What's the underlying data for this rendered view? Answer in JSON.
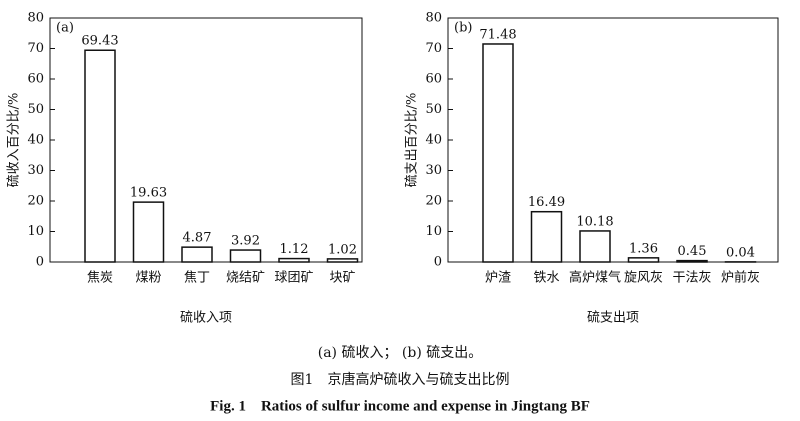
{
  "chart_data": [
    {
      "type": "bar",
      "title": "(a)",
      "ylabel": "硫收入百分比/%",
      "xlabel": "硫收入项",
      "categories": [
        "焦炭",
        "煤粉",
        "焦丁",
        "烧结矿",
        "球团矿",
        "块矿"
      ],
      "values": [
        69.43,
        19.63,
        4.87,
        3.92,
        1.12,
        1.02
      ],
      "color": "#ffffff",
      "ylim": [
        0,
        80
      ],
      "yticks": [
        0,
        10,
        20,
        30,
        40,
        50,
        60,
        70,
        80
      ],
      "grid": false
    },
    {
      "type": "bar",
      "title": "(b)",
      "ylabel": "硫支出百分比/%",
      "xlabel": "硫支出项",
      "categories": [
        "炉渣",
        "铁水",
        "高炉煤气",
        "旋风灰",
        "干法灰",
        "炉前灰"
      ],
      "values": [
        71.48,
        16.49,
        10.18,
        1.36,
        0.45,
        0.04
      ],
      "color": "#ffffff",
      "ylim": [
        0,
        80
      ],
      "yticks": [
        0,
        10,
        20,
        30,
        40,
        50,
        60,
        70,
        80
      ],
      "grid": false
    }
  ],
  "figure": {
    "subcaption": "(a) 硫收入； (b) 硫支出。",
    "caption_cn": "图1　京唐高炉硫收入与硫支出比例",
    "caption_en": "Fig. 1　Ratios of sulfur income and expense in Jingtang BF"
  }
}
